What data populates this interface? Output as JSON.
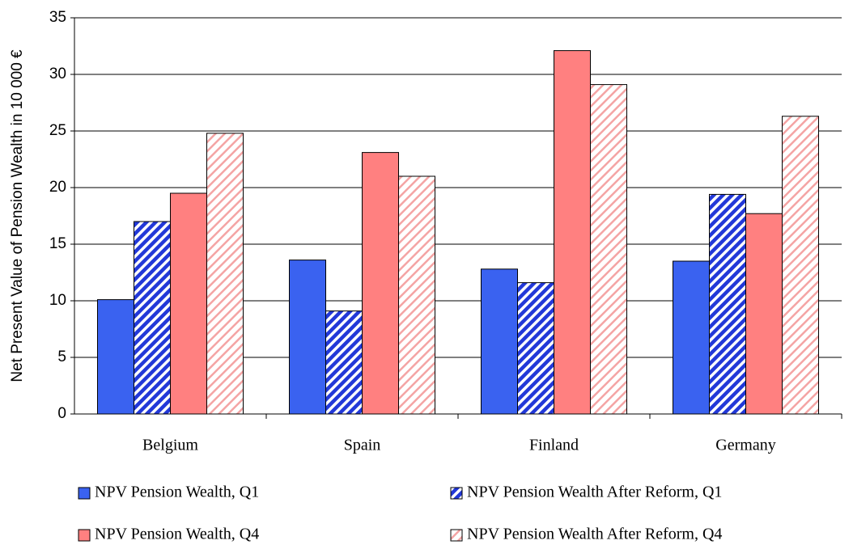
{
  "chart_data": {
    "type": "bar",
    "y_label": "Net Present Value of Pension Wealth in 10 000 €",
    "categories": [
      "Belgium",
      "Spain",
      "Finland",
      "Germany"
    ],
    "series": [
      {
        "name": "NPV Pension Wealth, Q1",
        "color": "#3a62f0",
        "pattern": "solid",
        "values": [
          10.1,
          13.6,
          12.8,
          13.5
        ]
      },
      {
        "name": "NPV Pension Wealth After Reform, Q1",
        "color": "#2238d8",
        "pattern": "hatch",
        "values": [
          17.0,
          9.1,
          11.6,
          19.4
        ]
      },
      {
        "name": "NPV Pension Wealth, Q4",
        "color": "#ff8080",
        "pattern": "solid",
        "values": [
          19.5,
          23.1,
          32.1,
          17.7
        ]
      },
      {
        "name": "NPV Pension Wealth After Reform, Q4",
        "color": "#f4a4a4",
        "pattern": "hatch",
        "values": [
          24.8,
          21.0,
          29.1,
          26.3
        ]
      }
    ],
    "ylim": [
      0,
      35
    ],
    "yticks": [
      0,
      5,
      10,
      15,
      20,
      25,
      30,
      35
    ],
    "grid": true
  }
}
